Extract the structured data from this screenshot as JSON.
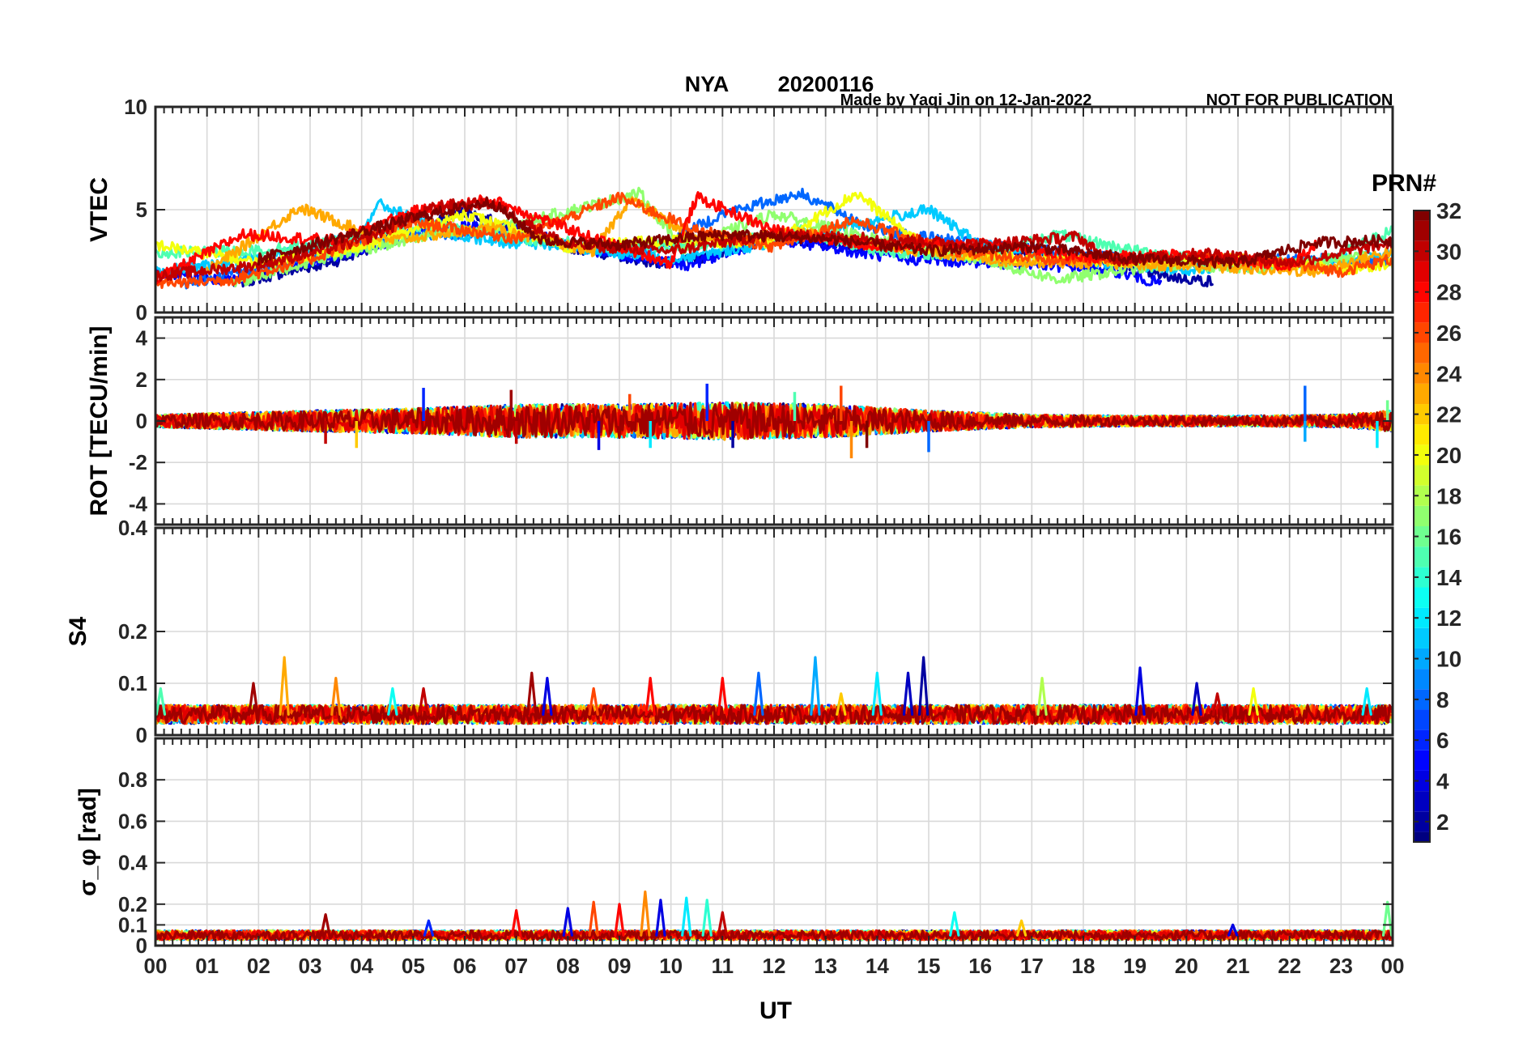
{
  "header": {
    "station": "NYA",
    "date": "20200116",
    "credit": "Made by Yaqi Jin on 12-Jan-2022",
    "notice": "NOT FOR PUBLICATION",
    "title_color": "#ff0000",
    "credit_color": "#0000ff"
  },
  "colorbar": {
    "title": "PRN#",
    "min": 1,
    "max": 32,
    "ticks": [
      2,
      4,
      6,
      8,
      10,
      12,
      14,
      16,
      18,
      20,
      22,
      24,
      26,
      28,
      30,
      32
    ],
    "colormap": "jet"
  },
  "chart_data": [
    {
      "type": "line",
      "panel": "vtec",
      "ylabel": "VTEC",
      "xlabel": "",
      "xlim": [
        0,
        24
      ],
      "ylim": [
        0,
        10
      ],
      "yticks": [
        0,
        5,
        10
      ],
      "ytick_labels": [
        "0",
        "5",
        "10"
      ],
      "grid": true,
      "series": [
        {
          "prn": 2,
          "x": [
            1.5,
            3.5,
            5.0,
            6.0,
            8.0,
            10.0,
            12.0,
            14.0,
            15.5,
            17.5,
            19.5,
            20.5
          ],
          "y": [
            1.4,
            2.5,
            4.0,
            4.9,
            3.2,
            2.3,
            3.6,
            3.1,
            3.1,
            2.9,
            1.8,
            1.5
          ]
        },
        {
          "prn": 5,
          "x": [
            0.0,
            1.5,
            3.0,
            5.0,
            6.5,
            8.5,
            10.3,
            12.0,
            14.5,
            16.5,
            18.5,
            19.5
          ],
          "y": [
            1.9,
            1.6,
            2.4,
            3.8,
            4.3,
            3.0,
            2.3,
            3.6,
            2.6,
            2.4,
            2.1,
            1.4
          ]
        },
        {
          "prn": 8,
          "x": [
            0.5,
            2.0,
            3.5,
            5.0,
            6.5,
            8.0,
            9.5,
            11.0,
            12.5,
            14.0,
            16.0,
            18.0,
            20.0,
            22.0,
            24.0
          ],
          "y": [
            1.3,
            2.2,
            3.0,
            3.8,
            3.9,
            3.3,
            2.9,
            4.8,
            5.8,
            4.0,
            3.3,
            2.8,
            2.4,
            2.6,
            2.5
          ]
        },
        {
          "prn": 11,
          "x": [
            0.0,
            2.0,
            4.0,
            4.3,
            6.0,
            8.0,
            10.0,
            12.0,
            14.0,
            15.0,
            16.0,
            18.5,
            20.0,
            22.5,
            24.0
          ],
          "y": [
            2.0,
            2.6,
            3.8,
            5.3,
            3.6,
            3.2,
            2.6,
            3.4,
            4.5,
            5.0,
            3.3,
            2.4,
            2.1,
            2.5,
            2.9
          ]
        },
        {
          "prn": 15,
          "x": [
            0.0,
            2.0,
            3.5,
            5.5,
            7.0,
            9.0,
            11.0,
            12.5,
            14.0,
            16.0,
            17.5,
            19.0,
            21.0,
            22.5,
            24.0
          ],
          "y": [
            2.9,
            3.0,
            3.4,
            4.3,
            3.6,
            3.2,
            3.3,
            4.0,
            3.0,
            2.7,
            3.8,
            3.0,
            2.5,
            2.3,
            4.0
          ]
        },
        {
          "prn": 17,
          "x": [
            1.5,
            3.0,
            5.0,
            7.0,
            9.4,
            10.2,
            12.0,
            14.0,
            16.0,
            17.5,
            19.5,
            21.5,
            23.5
          ],
          "y": [
            1.4,
            2.5,
            3.6,
            4.3,
            5.8,
            3.1,
            4.8,
            3.5,
            2.6,
            1.6,
            2.3,
            2.2,
            2.8
          ]
        },
        {
          "prn": 20,
          "x": [
            0.0,
            2.0,
            4.0,
            6.0,
            8.0,
            10.0,
            12.0,
            13.6,
            15.0,
            17.0,
            19.0,
            21.0,
            23.0,
            24.0
          ],
          "y": [
            3.3,
            2.4,
            3.2,
            4.8,
            3.2,
            3.5,
            3.4,
            5.8,
            3.0,
            2.6,
            2.5,
            2.6,
            2.1,
            2.4
          ]
        },
        {
          "prn": 23,
          "x": [
            1.0,
            2.8,
            4.5,
            6.5,
            8.5,
            9.2,
            10.5,
            12.5,
            14.5,
            16.5,
            18.5,
            20.5,
            22.5,
            24.0
          ],
          "y": [
            2.0,
            5.1,
            3.5,
            4.1,
            3.0,
            5.5,
            3.6,
            3.9,
            3.1,
            2.5,
            2.4,
            2.2,
            2.0,
            3.0
          ]
        },
        {
          "prn": 26,
          "x": [
            0.0,
            1.5,
            3.0,
            5.0,
            7.0,
            9.0,
            10.5,
            12.0,
            13.5,
            15.5,
            17.5,
            19.5,
            21.5,
            23.0,
            24.0
          ],
          "y": [
            1.4,
            1.6,
            2.6,
            4.4,
            3.6,
            5.6,
            4.0,
            3.2,
            4.5,
            3.0,
            2.5,
            2.7,
            2.5,
            2.0,
            2.6
          ]
        },
        {
          "prn": 28,
          "x": [
            0.0,
            1.7,
            3.5,
            5.0,
            6.5,
            8.5,
            10.0,
            10.5,
            12.0,
            14.0,
            16.0,
            18.0,
            20.0,
            22.0,
            22.5
          ],
          "y": [
            1.6,
            3.8,
            3.5,
            4.9,
            5.5,
            3.6,
            2.4,
            5.6,
            4.0,
            3.2,
            3.4,
            2.7,
            2.8,
            2.3,
            3.3
          ]
        },
        {
          "prn": 30,
          "x": [
            0.0,
            2.0,
            4.0,
            5.5,
            6.5,
            8.0,
            10.0,
            12.0,
            14.0,
            16.0,
            17.9,
            18.5,
            20.5,
            22.0,
            24.0
          ],
          "y": [
            1.8,
            2.3,
            3.5,
            5.2,
            5.3,
            3.3,
            3.0,
            3.8,
            3.6,
            3.3,
            3.7,
            2.5,
            2.9,
            2.4,
            3.4
          ]
        },
        {
          "prn": 32,
          "x": [
            2.0,
            3.5,
            5.0,
            6.5,
            7.5,
            9.0,
            11.0,
            13.0,
            15.0,
            17.0,
            19.0,
            21.0,
            22.5,
            24.0
          ],
          "y": [
            2.6,
            3.6,
            4.6,
            5.4,
            3.5,
            3.3,
            3.8,
            3.6,
            3.0,
            3.2,
            2.6,
            2.4,
            3.4,
            3.5
          ]
        }
      ]
    },
    {
      "type": "line",
      "panel": "rot",
      "ylabel": "ROT [TECU/min]",
      "xlabel": "",
      "xlim": [
        0,
        24
      ],
      "ylim": [
        -5,
        5
      ],
      "yticks": [
        -4,
        -2,
        0,
        2,
        4
      ],
      "ytick_labels": [
        "-4",
        "-2",
        "0",
        "2",
        "4"
      ],
      "grid": true,
      "spike_events": [
        {
          "x": 3.3,
          "y": -1.1,
          "prn": 30
        },
        {
          "x": 3.9,
          "y": -1.3,
          "prn": 22
        },
        {
          "x": 5.2,
          "y": 1.6,
          "prn": 6
        },
        {
          "x": 6.9,
          "y": 1.5,
          "prn": 31
        },
        {
          "x": 7.0,
          "y": -1.1,
          "prn": 30
        },
        {
          "x": 8.6,
          "y": -1.4,
          "prn": 4
        },
        {
          "x": 9.2,
          "y": 1.3,
          "prn": 26
        },
        {
          "x": 9.6,
          "y": -1.3,
          "prn": 12
        },
        {
          "x": 10.7,
          "y": 1.8,
          "prn": 6
        },
        {
          "x": 11.2,
          "y": -1.3,
          "prn": 2
        },
        {
          "x": 12.4,
          "y": 1.4,
          "prn": 15
        },
        {
          "x": 13.3,
          "y": 1.7,
          "prn": 26
        },
        {
          "x": 13.5,
          "y": -1.8,
          "prn": 24
        },
        {
          "x": 13.8,
          "y": -1.3,
          "prn": 32
        },
        {
          "x": 15.0,
          "y": -1.5,
          "prn": 8
        },
        {
          "x": 22.3,
          "y": 1.7,
          "prn": 8
        },
        {
          "x": 22.3,
          "y": -1.0,
          "prn": 10
        },
        {
          "x": 23.7,
          "y": -1.3,
          "prn": 12
        },
        {
          "x": 23.9,
          "y": 1.0,
          "prn": 16
        }
      ],
      "activity_envelope": {
        "x": [
          0,
          3,
          5,
          7,
          9,
          11,
          13,
          15,
          17,
          19,
          21,
          23,
          24
        ],
        "y": [
          0.3,
          0.5,
          0.6,
          0.8,
          0.8,
          0.9,
          0.8,
          0.5,
          0.3,
          0.25,
          0.25,
          0.3,
          0.5
        ]
      }
    },
    {
      "type": "line",
      "panel": "s4",
      "ylabel": "S4",
      "xlabel": "",
      "xlim": [
        0,
        24
      ],
      "ylim": [
        0,
        0.4
      ],
      "yticks": [
        0,
        0.1,
        0.2,
        0.4
      ],
      "ytick_labels": [
        "0",
        "0.1",
        "0.2",
        "0.4"
      ],
      "grid": true,
      "baseline": 0.04,
      "spike_events": [
        {
          "x": 0.1,
          "y": 0.09,
          "prn": 15
        },
        {
          "x": 1.9,
          "y": 0.1,
          "prn": 31
        },
        {
          "x": 2.5,
          "y": 0.15,
          "prn": 23
        },
        {
          "x": 3.5,
          "y": 0.11,
          "prn": 24
        },
        {
          "x": 4.6,
          "y": 0.09,
          "prn": 13
        },
        {
          "x": 5.2,
          "y": 0.09,
          "prn": 30
        },
        {
          "x": 7.3,
          "y": 0.12,
          "prn": 31
        },
        {
          "x": 7.6,
          "y": 0.11,
          "prn": 4
        },
        {
          "x": 8.5,
          "y": 0.09,
          "prn": 26
        },
        {
          "x": 9.6,
          "y": 0.11,
          "prn": 28
        },
        {
          "x": 11.0,
          "y": 0.11,
          "prn": 28
        },
        {
          "x": 11.7,
          "y": 0.12,
          "prn": 8
        },
        {
          "x": 12.8,
          "y": 0.15,
          "prn": 10
        },
        {
          "x": 13.3,
          "y": 0.08,
          "prn": 22
        },
        {
          "x": 14.0,
          "y": 0.12,
          "prn": 12
        },
        {
          "x": 14.6,
          "y": 0.12,
          "prn": 3
        },
        {
          "x": 14.9,
          "y": 0.15,
          "prn": 2
        },
        {
          "x": 17.2,
          "y": 0.11,
          "prn": 18
        },
        {
          "x": 19.1,
          "y": 0.13,
          "prn": 4
        },
        {
          "x": 20.2,
          "y": 0.1,
          "prn": 3
        },
        {
          "x": 20.6,
          "y": 0.08,
          "prn": 30
        },
        {
          "x": 21.3,
          "y": 0.09,
          "prn": 20
        },
        {
          "x": 23.5,
          "y": 0.09,
          "prn": 12
        }
      ]
    },
    {
      "type": "line",
      "panel": "sigma_phi",
      "ylabel": "σ_φ [rad]",
      "xlabel": "UT",
      "xlim": [
        0,
        24
      ],
      "ylim": [
        0,
        1
      ],
      "yticks": [
        0,
        0.1,
        0.2,
        0.4,
        0.6,
        0.8
      ],
      "ytick_labels": [
        "0",
        "0.1",
        "0.2",
        "0.4",
        "0.6",
        "0.8"
      ],
      "xticks": [
        0,
        1,
        2,
        3,
        4,
        5,
        6,
        7,
        8,
        9,
        10,
        11,
        12,
        13,
        14,
        15,
        16,
        17,
        18,
        19,
        20,
        21,
        22,
        23,
        24
      ],
      "xtick_labels": [
        "00",
        "01",
        "02",
        "03",
        "04",
        "05",
        "06",
        "07",
        "08",
        "09",
        "10",
        "11",
        "12",
        "13",
        "14",
        "15",
        "16",
        "17",
        "18",
        "19",
        "20",
        "21",
        "22",
        "23",
        "00"
      ],
      "grid": true,
      "baseline": 0.05,
      "spike_events": [
        {
          "x": 3.3,
          "y": 0.15,
          "prn": 31
        },
        {
          "x": 5.3,
          "y": 0.12,
          "prn": 6
        },
        {
          "x": 7.0,
          "y": 0.17,
          "prn": 28
        },
        {
          "x": 8.0,
          "y": 0.18,
          "prn": 4
        },
        {
          "x": 8.5,
          "y": 0.21,
          "prn": 26
        },
        {
          "x": 9.0,
          "y": 0.2,
          "prn": 28
        },
        {
          "x": 9.5,
          "y": 0.26,
          "prn": 24
        },
        {
          "x": 9.8,
          "y": 0.22,
          "prn": 4
        },
        {
          "x": 10.3,
          "y": 0.23,
          "prn": 12
        },
        {
          "x": 10.7,
          "y": 0.22,
          "prn": 14
        },
        {
          "x": 11.0,
          "y": 0.16,
          "prn": 30
        },
        {
          "x": 15.5,
          "y": 0.16,
          "prn": 13
        },
        {
          "x": 16.8,
          "y": 0.12,
          "prn": 22
        },
        {
          "x": 20.9,
          "y": 0.1,
          "prn": 4
        },
        {
          "x": 23.9,
          "y": 0.21,
          "prn": 16
        }
      ]
    }
  ]
}
